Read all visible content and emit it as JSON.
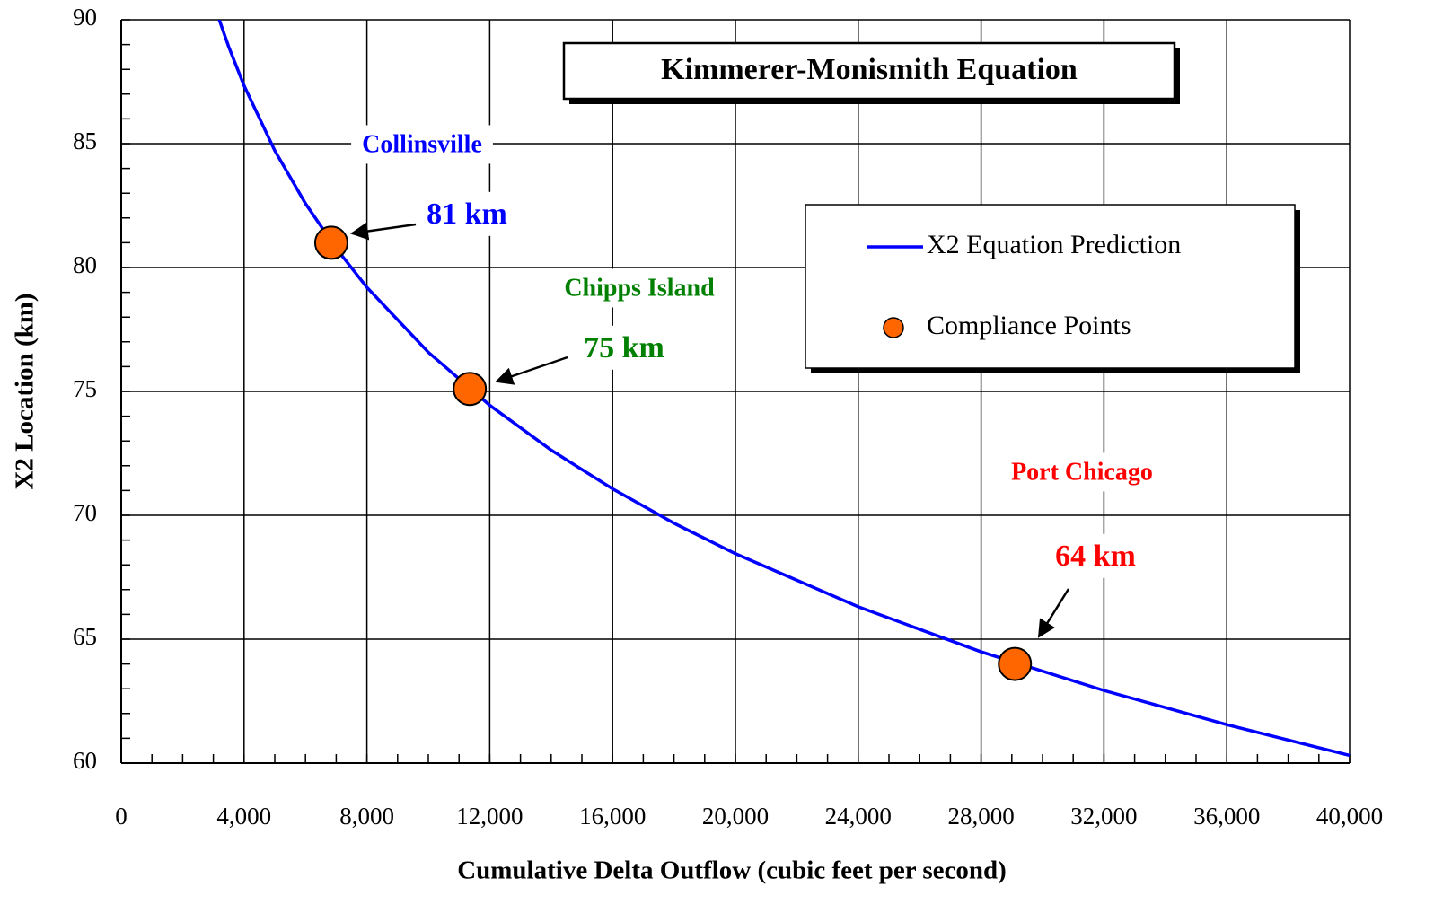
{
  "chart_data": {
    "type": "line",
    "title": "Kimmerer-Monismith Equation",
    "x_label": "Cumulative Delta Outflow (cubic feet per second)",
    "y_label": "X2 Location (km)",
    "xlim": [
      0,
      40000
    ],
    "ylim": [
      60,
      90
    ],
    "xticks": [
      0,
      {
        "value": 4000,
        "label": "4,000"
      },
      {
        "value": 8000,
        "label": "8,000"
      },
      {
        "value": 12000,
        "label": "12,000"
      },
      {
        "value": 16000,
        "label": "16,000"
      },
      {
        "value": 20000,
        "label": "20,000"
      },
      {
        "value": 24000,
        "label": "24,000"
      },
      {
        "value": 28000,
        "label": "28,000"
      },
      {
        "value": 32000,
        "label": "32,000"
      },
      {
        "value": 36000,
        "label": "36,000"
      },
      {
        "value": 40000,
        "label": "40,000"
      }
    ],
    "yticks": [
      60,
      65,
      70,
      75,
      80,
      85,
      90
    ],
    "xminor": 1000,
    "yminor": 1,
    "grid": true,
    "legend": "upper right",
    "series": [
      {
        "name": "X2 Equation Prediction",
        "color": "#0000ff",
        "kind": "line",
        "x": [
          3100,
          3500,
          4000,
          5000,
          6000,
          7000,
          8000,
          10000,
          12000,
          14000,
          16000,
          18000,
          20000,
          24000,
          28000,
          32000,
          36000,
          40000
        ],
        "values": [
          90.33,
          88.91,
          87.34,
          84.72,
          82.58,
          80.77,
          79.2,
          76.58,
          74.44,
          72.63,
          71.07,
          69.68,
          68.45,
          66.31,
          64.49,
          62.93,
          61.55,
          60.31
        ]
      },
      {
        "name": "Compliance Points",
        "color": "#ff6600",
        "kind": "scatter",
        "x": [
          6840,
          11350,
          29100
        ],
        "values": [
          81,
          75.1,
          64
        ]
      }
    ],
    "annotations": [
      {
        "text": "Collinsville",
        "color": "#0000ff"
      },
      {
        "text": "81 km",
        "color": "#0000ff"
      },
      {
        "text": "Chipps Island",
        "color": "#008000"
      },
      {
        "text": "75 km",
        "color": "#008000"
      },
      {
        "text": "Port Chicago",
        "color": "#ff0000"
      },
      {
        "text": "64 km",
        "color": "#ff0000"
      }
    ]
  }
}
